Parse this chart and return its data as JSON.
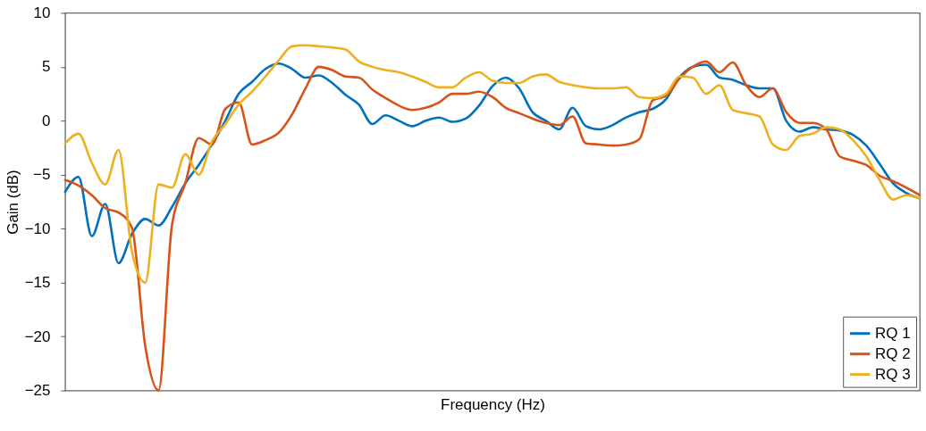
{
  "chart_data": {
    "type": "line",
    "xlabel": "Frequency (Hz)",
    "ylabel": "Gain (dB)",
    "categories": [
      null,
      null,
      null,
      null,
      null,
      null,
      null,
      null,
      null,
      null,
      null,
      null,
      null,
      null,
      null,
      null,
      null,
      null,
      null,
      null,
      null,
      null,
      null,
      null,
      null,
      null,
      null,
      null,
      null,
      null,
      null,
      null,
      null,
      null,
      null,
      null,
      null,
      null,
      null,
      null,
      null,
      null,
      null,
      null,
      null,
      null,
      null,
      null,
      null,
      null,
      null,
      null,
      null,
      null,
      null,
      null,
      null,
      null,
      null,
      null,
      null,
      null,
      null,
      null,
      null
    ],
    "series": [
      {
        "name": "RQ 1",
        "color": "#0072bd",
        "values": [
          -6.6,
          -5.2,
          -10.7,
          -7.7,
          -13.2,
          -10.5,
          -9.1,
          -9.7,
          -8.0,
          -5.8,
          -4.1,
          -2.2,
          0.0,
          2.5,
          3.6,
          4.8,
          5.3,
          4.8,
          4.0,
          4.2,
          3.5,
          2.4,
          1.5,
          -0.3,
          0.5,
          0.0,
          -0.5,
          0.0,
          0.3,
          -0.1,
          0.2,
          1.4,
          3.2,
          4.0,
          3.0,
          0.8,
          0.0,
          -0.8,
          1.2,
          -0.5,
          -0.8,
          -0.4,
          0.3,
          0.8,
          1.1,
          2.0,
          4.0,
          5.0,
          5.2,
          4.0,
          3.8,
          3.3,
          3.0,
          3.0,
          0.0,
          -1.0,
          -0.6,
          -0.8,
          -0.9,
          -1.3,
          -2.3,
          -4.0,
          -5.8,
          -6.7,
          -7.2
        ]
      },
      {
        "name": "RQ 2",
        "color": "#d95319",
        "values": [
          -5.5,
          -6.0,
          -6.9,
          -8.1,
          -8.5,
          -9.9,
          -20.9,
          -25,
          -9.7,
          -5.8,
          -1.6,
          -2.2,
          1.1,
          1.7,
          -2.2,
          -1.8,
          -1.1,
          0.6,
          3.0,
          5.0,
          4.7,
          4.1,
          4.0,
          2.9,
          2.1,
          1.4,
          1.0,
          1.2,
          1.7,
          2.5,
          2.5,
          2.7,
          2.2,
          1.2,
          0.7,
          0.2,
          -0.2,
          -0.4,
          0.4,
          -2.1,
          -2.2,
          -2.3,
          -2.2,
          -1.7,
          1.9,
          2.3,
          3.9,
          5.0,
          5.5,
          4.5,
          5.4,
          3.3,
          2.2,
          3.0,
          0.8,
          -0.2,
          -0.2,
          -0.8,
          -3.3,
          -3.7,
          -4.1,
          -5.1,
          -5.6,
          -6.2,
          -6.9
        ]
      },
      {
        "name": "RQ 3",
        "color": "#edb120",
        "values": [
          -2.1,
          -1.2,
          -3.9,
          -5.9,
          -2.7,
          -12.1,
          -15.0,
          -5.9,
          -6.2,
          -3.1,
          -5.0,
          -1.9,
          -0.3,
          1.5,
          2.7,
          4.1,
          5.6,
          6.9,
          7.0,
          6.9,
          6.8,
          6.6,
          5.5,
          5.0,
          4.7,
          4.5,
          4.1,
          3.6,
          3.1,
          3.1,
          4.0,
          4.5,
          3.7,
          3.5,
          3.5,
          4.1,
          4.3,
          3.6,
          3.3,
          3.1,
          3.0,
          3.0,
          3.1,
          2.2,
          2.1,
          2.5,
          4.1,
          4.0,
          2.5,
          3.3,
          1.0,
          0.7,
          0.4,
          -2.2,
          -2.7,
          -1.4,
          -1.2,
          -0.6,
          -0.8,
          -1.8,
          -3.3,
          -5.5,
          -7.3,
          -6.9,
          -7.2
        ]
      }
    ],
    "ylim": [
      -25,
      10
    ],
    "yticks": [
      -25,
      -20,
      -15,
      -10,
      -5,
      0,
      5,
      10
    ],
    "tick_labels": "y",
    "legend": "bottom right"
  }
}
